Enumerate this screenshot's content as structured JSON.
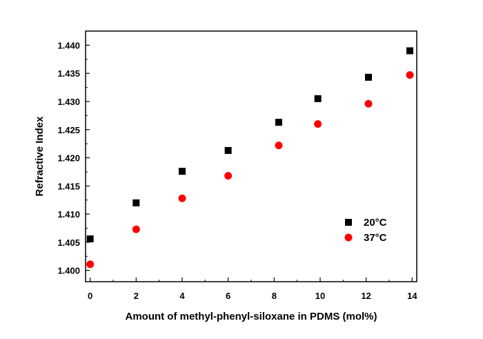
{
  "chart_data": {
    "type": "scatter",
    "xlabel": "Amount of methyl-phenyl-siloxane in PDMS (mol%)",
    "ylabel": "Refractive Index",
    "xlim": [
      -0.2,
      14.2
    ],
    "ylim": [
      1.398,
      1.4425
    ],
    "xticks": [
      0,
      2,
      4,
      6,
      8,
      10,
      12,
      14
    ],
    "yticks": [
      1.4,
      1.405,
      1.41,
      1.415,
      1.42,
      1.425,
      1.43,
      1.435,
      1.44
    ],
    "ytick_labels": [
      "1.400",
      "1.405",
      "1.410",
      "1.415",
      "1.420",
      "1.425",
      "1.430",
      "1.435",
      "1.440"
    ],
    "grid": false,
    "legend_position": "bottom-right",
    "series": [
      {
        "name": "20°C",
        "marker": "square",
        "color": "#000000",
        "x": [
          0,
          2,
          4,
          6,
          8.2,
          9.9,
          12.1,
          13.9
        ],
        "y": [
          1.4056,
          1.412,
          1.4176,
          1.4213,
          1.4263,
          1.4305,
          1.4343,
          1.439
        ]
      },
      {
        "name": "37°C",
        "marker": "circle",
        "color": "#ff0000",
        "x": [
          0,
          2,
          4,
          6,
          8.2,
          9.9,
          12.1,
          13.9
        ],
        "y": [
          1.4011,
          1.4073,
          1.4128,
          1.4168,
          1.4222,
          1.426,
          1.4296,
          1.4347
        ]
      }
    ]
  }
}
